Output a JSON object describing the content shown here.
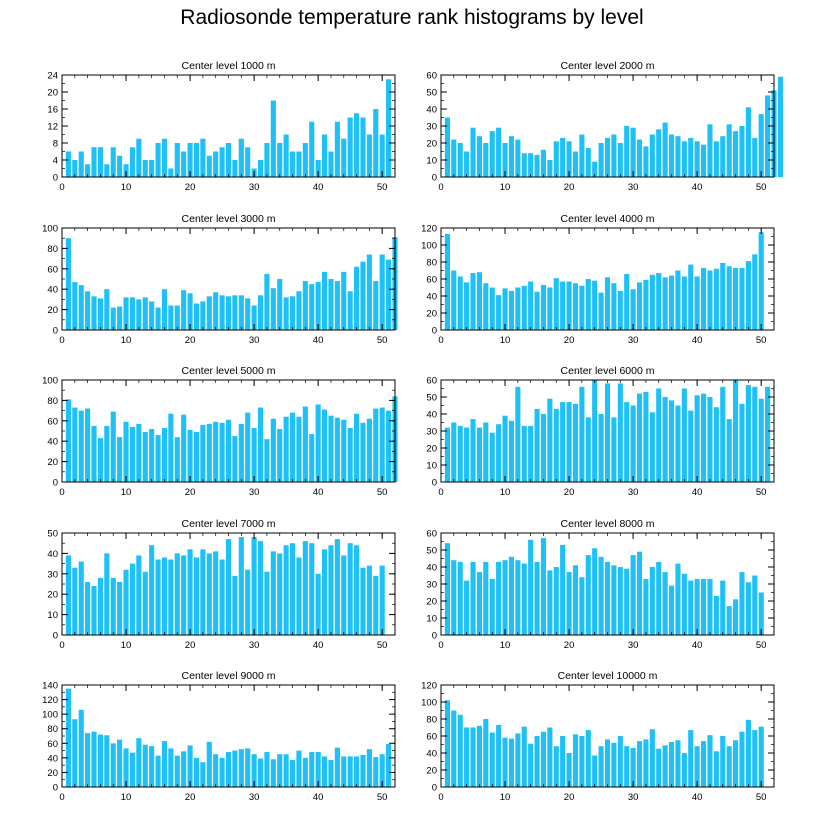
{
  "title": "Radiosonde temperature rank histograms by level",
  "bar_color": "#1EC0F5",
  "chart_data": [
    {
      "type": "bar",
      "title": "Center level 1000 m",
      "xlim": [
        0,
        52
      ],
      "ylim": [
        0,
        24
      ],
      "xticks": [
        0,
        10,
        20,
        30,
        40,
        50
      ],
      "yticks": [
        0,
        4,
        8,
        12,
        16,
        20,
        24
      ],
      "values": [
        6,
        4,
        6,
        3,
        7,
        7,
        3,
        7,
        5,
        3,
        7,
        9,
        4,
        4,
        8,
        9,
        2,
        8,
        6,
        8,
        8,
        9,
        5,
        6,
        7,
        8,
        4,
        9,
        7,
        2,
        4,
        8,
        18,
        8,
        10,
        6,
        6,
        8,
        13,
        4,
        10,
        6,
        13,
        9,
        14,
        15,
        14,
        10,
        16,
        10,
        23
      ]
    },
    {
      "type": "bar",
      "title": "Center level 2000 m",
      "xlim": [
        0,
        52
      ],
      "ylim": [
        0,
        60
      ],
      "xticks": [
        0,
        10,
        20,
        30,
        40,
        50
      ],
      "yticks": [
        0,
        10,
        20,
        30,
        40,
        50,
        60
      ],
      "values": [
        35,
        22,
        20,
        15,
        29,
        24,
        20,
        27,
        29,
        20,
        24,
        22,
        14,
        14,
        13,
        16,
        10,
        21,
        23,
        21,
        15,
        25,
        17,
        9,
        20,
        23,
        25,
        20,
        30,
        29,
        22,
        18,
        25,
        28,
        32,
        25,
        24,
        21,
        23,
        21,
        19,
        31,
        21,
        24,
        31,
        27,
        30,
        41,
        23,
        37,
        48,
        51,
        59
      ]
    },
    {
      "type": "bar",
      "title": "Center level 3000 m",
      "xlim": [
        0,
        52
      ],
      "ylim": [
        0,
        100
      ],
      "xticks": [
        0,
        10,
        20,
        30,
        40,
        50
      ],
      "yticks": [
        0,
        20,
        40,
        60,
        80,
        100
      ],
      "values": [
        90,
        47,
        44,
        38,
        33,
        31,
        40,
        22,
        23,
        32,
        32,
        30,
        32,
        28,
        22,
        40,
        24,
        24,
        39,
        36,
        26,
        28,
        33,
        37,
        34,
        33,
        34,
        34,
        31,
        24,
        34,
        55,
        41,
        50,
        32,
        33,
        38,
        48,
        45,
        47,
        57,
        50,
        48,
        57,
        38,
        62,
        67,
        74,
        48,
        74,
        69,
        91
      ]
    },
    {
      "type": "bar",
      "title": "Center level 4000 m",
      "xlim": [
        0,
        52
      ],
      "ylim": [
        0,
        120
      ],
      "xticks": [
        0,
        10,
        20,
        30,
        40,
        50
      ],
      "yticks": [
        0,
        20,
        40,
        60,
        80,
        100,
        120
      ],
      "values": [
        113,
        70,
        63,
        56,
        67,
        68,
        55,
        50,
        41,
        49,
        46,
        50,
        52,
        57,
        45,
        53,
        50,
        61,
        57,
        57,
        55,
        52,
        60,
        58,
        44,
        62,
        55,
        46,
        66,
        48,
        56,
        59,
        65,
        67,
        62,
        64,
        70,
        63,
        77,
        63,
        73,
        70,
        72,
        79,
        75,
        73,
        73,
        81,
        89,
        115
      ]
    },
    {
      "type": "bar",
      "title": "Center level 5000 m",
      "xlim": [
        0,
        52
      ],
      "ylim": [
        0,
        100
      ],
      "xticks": [
        0,
        10,
        20,
        30,
        40,
        50
      ],
      "yticks": [
        0,
        20,
        40,
        60,
        80,
        100
      ],
      "values": [
        81,
        73,
        70,
        72,
        55,
        43,
        55,
        69,
        44,
        59,
        54,
        57,
        49,
        52,
        46,
        53,
        67,
        44,
        66,
        51,
        49,
        56,
        57,
        59,
        58,
        61,
        45,
        57,
        68,
        53,
        73,
        42,
        62,
        52,
        64,
        68,
        64,
        74,
        47,
        76,
        71,
        65,
        63,
        61,
        53,
        67,
        58,
        62,
        72,
        73,
        70,
        84
      ]
    },
    {
      "type": "bar",
      "title": "Center level 6000 m",
      "xlim": [
        0,
        52
      ],
      "ylim": [
        0,
        60
      ],
      "xticks": [
        0,
        10,
        20,
        30,
        40,
        50
      ],
      "yticks": [
        0,
        10,
        20,
        30,
        40,
        50,
        60
      ],
      "values": [
        32,
        35,
        33,
        32,
        37,
        32,
        35,
        29,
        34,
        39,
        36,
        56,
        33,
        33,
        43,
        40,
        49,
        43,
        47,
        47,
        46,
        56,
        38,
        60,
        40,
        58,
        38,
        58,
        47,
        45,
        52,
        53,
        41,
        55,
        50,
        48,
        45,
        55,
        42,
        51,
        52,
        50,
        44,
        56,
        37,
        61,
        46,
        57,
        56,
        49,
        56
      ]
    },
    {
      "type": "bar",
      "title": "Center level 7000 m",
      "xlim": [
        0,
        52
      ],
      "ylim": [
        0,
        50
      ],
      "xticks": [
        0,
        10,
        20,
        30,
        40,
        50
      ],
      "yticks": [
        0,
        10,
        20,
        30,
        40,
        50
      ],
      "values": [
        39,
        33,
        36,
        26,
        24,
        28,
        40,
        28,
        26,
        32,
        35,
        39,
        31,
        44,
        37,
        38,
        37,
        40,
        39,
        42,
        38,
        42,
        40,
        41,
        37,
        47,
        29,
        48,
        32,
        48,
        46,
        31,
        41,
        40,
        44,
        45,
        38,
        46,
        45,
        30,
        42,
        44,
        47,
        39,
        45,
        44,
        33,
        34,
        29,
        34
      ]
    },
    {
      "type": "bar",
      "title": "Center level 8000 m",
      "xlim": [
        0,
        52
      ],
      "ylim": [
        0,
        60
      ],
      "xticks": [
        0,
        10,
        20,
        30,
        40,
        50
      ],
      "yticks": [
        0,
        10,
        20,
        30,
        40,
        50,
        60
      ],
      "values": [
        54,
        44,
        43,
        32,
        43,
        37,
        43,
        33,
        43,
        44,
        46,
        44,
        42,
        56,
        43,
        57,
        38,
        40,
        53,
        37,
        41,
        34,
        47,
        51,
        46,
        43,
        41,
        40,
        39,
        47,
        49,
        33,
        40,
        43,
        37,
        29,
        42,
        36,
        32,
        33,
        33,
        33,
        23,
        32,
        17,
        21,
        37,
        31,
        35,
        25
      ]
    },
    {
      "type": "bar",
      "title": "Center level 9000 m",
      "xlim": [
        0,
        52
      ],
      "ylim": [
        0,
        140
      ],
      "xticks": [
        0,
        10,
        20,
        30,
        40,
        50
      ],
      "yticks": [
        0,
        20,
        40,
        60,
        80,
        100,
        120,
        140
      ],
      "values": [
        135,
        93,
        106,
        74,
        76,
        72,
        71,
        60,
        65,
        53,
        47,
        67,
        58,
        56,
        43,
        63,
        53,
        43,
        49,
        57,
        40,
        34,
        62,
        45,
        40,
        48,
        50,
        52,
        53,
        45,
        39,
        48,
        38,
        45,
        45,
        37,
        50,
        40,
        48,
        48,
        42,
        37,
        54,
        42,
        42,
        42,
        44,
        52,
        41,
        45,
        59
      ]
    },
    {
      "type": "bar",
      "title": "Center level 10000 m",
      "xlim": [
        0,
        52
      ],
      "ylim": [
        0,
        120
      ],
      "xticks": [
        0,
        10,
        20,
        30,
        40,
        50
      ],
      "yticks": [
        0,
        20,
        40,
        60,
        80,
        100,
        120
      ],
      "values": [
        102,
        90,
        85,
        70,
        70,
        72,
        80,
        64,
        73,
        58,
        57,
        63,
        71,
        51,
        60,
        65,
        70,
        48,
        60,
        40,
        62,
        60,
        67,
        37,
        48,
        56,
        52,
        60,
        48,
        46,
        54,
        56,
        68,
        45,
        49,
        53,
        55,
        40,
        67,
        48,
        54,
        61,
        42,
        60,
        48,
        55,
        65,
        79,
        67,
        71
      ]
    }
  ]
}
